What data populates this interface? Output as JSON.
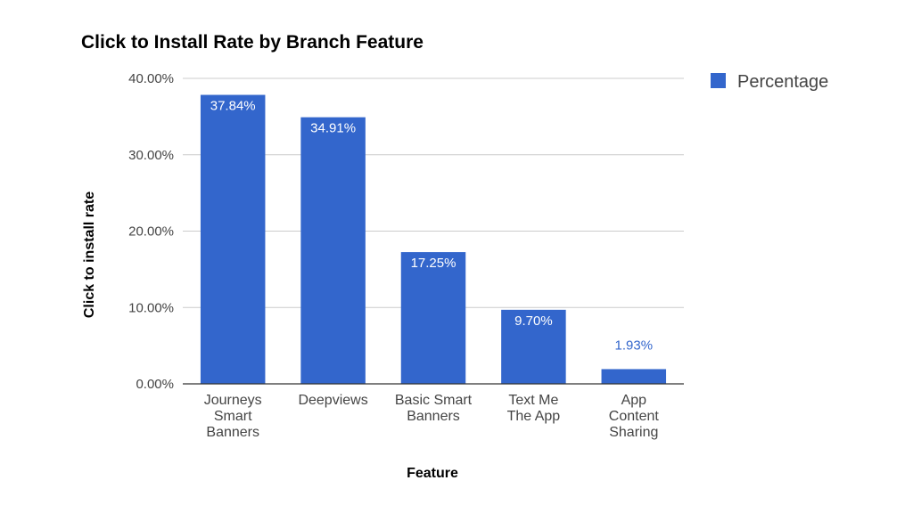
{
  "chart_data": {
    "type": "bar",
    "title": "Click to Install Rate by Branch Feature",
    "xlabel": "Feature",
    "ylabel": "Click to install rate",
    "categories": [
      [
        "Journeys",
        "Smart",
        "Banners"
      ],
      [
        "Deepviews"
      ],
      [
        "Basic Smart",
        "Banners"
      ],
      [
        "Text Me",
        "The App"
      ],
      [
        "App",
        "Content",
        "Sharing"
      ]
    ],
    "series": [
      {
        "name": "Percentage",
        "color": "#3366cc",
        "values": [
          37.84,
          34.91,
          17.25,
          9.7,
          1.93
        ],
        "data_labels": [
          "37.84%",
          "34.91%",
          "17.25%",
          "9.70%",
          "1.93%"
        ]
      }
    ],
    "ylim": [
      0,
      40
    ],
    "yticks": [
      0,
      10,
      20,
      30,
      40
    ],
    "ytick_labels": [
      "0.00%",
      "10.00%",
      "20.00%",
      "30.00%",
      "40.00%"
    ],
    "grid": true,
    "legend_position": "right"
  }
}
